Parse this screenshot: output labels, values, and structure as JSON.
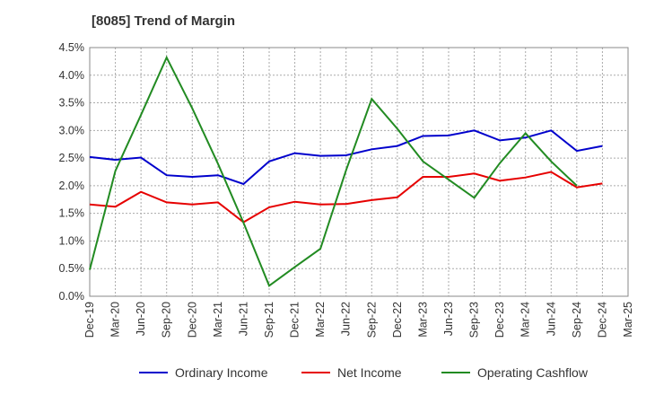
{
  "chart_data": {
    "type": "line",
    "title": "[8085]  Trend of Margin",
    "xlabel": "",
    "ylabel": "",
    "categories": [
      "Dec-19",
      "Mar-20",
      "Jun-20",
      "Sep-20",
      "Dec-20",
      "Mar-21",
      "Jun-21",
      "Sep-21",
      "Dec-21",
      "Mar-22",
      "Jun-22",
      "Sep-22",
      "Dec-22",
      "Mar-23",
      "Jun-23",
      "Sep-23",
      "Dec-23",
      "Mar-24",
      "Jun-24",
      "Sep-24",
      "Dec-24",
      "Mar-25"
    ],
    "ylim": [
      0,
      4.5
    ],
    "yticks": [
      "0.0%",
      "0.5%",
      "1.0%",
      "1.5%",
      "2.0%",
      "2.5%",
      "3.0%",
      "3.5%",
      "4.0%",
      "4.5%"
    ],
    "ytick_values": [
      0,
      0.5,
      1.0,
      1.5,
      2.0,
      2.5,
      3.0,
      3.5,
      4.0,
      4.5
    ],
    "grid": true,
    "legend_position": "bottom",
    "series": [
      {
        "name": "Ordinary Income",
        "color": "#0000cc",
        "values": [
          2.52,
          2.47,
          2.51,
          2.19,
          2.16,
          2.19,
          2.03,
          2.44,
          2.59,
          2.54,
          2.55,
          2.66,
          2.72,
          2.9,
          2.91,
          3.0,
          2.82,
          2.87,
          3.0,
          2.63,
          2.72,
          null
        ]
      },
      {
        "name": "Net Income",
        "color": "#e60000",
        "values": [
          1.66,
          1.62,
          1.89,
          1.7,
          1.66,
          1.7,
          1.34,
          1.61,
          1.71,
          1.66,
          1.67,
          1.74,
          1.79,
          2.16,
          2.16,
          2.22,
          2.09,
          2.15,
          2.25,
          1.97,
          2.04,
          null
        ]
      },
      {
        "name": "Operating Cashflow",
        "color": "#228b22",
        "values": [
          0.48,
          2.27,
          3.28,
          4.32,
          3.4,
          2.4,
          1.33,
          0.19,
          0.53,
          0.86,
          2.28,
          3.57,
          3.03,
          2.44,
          2.11,
          1.78,
          2.41,
          2.95,
          2.44,
          2.0,
          null,
          null
        ]
      }
    ]
  }
}
